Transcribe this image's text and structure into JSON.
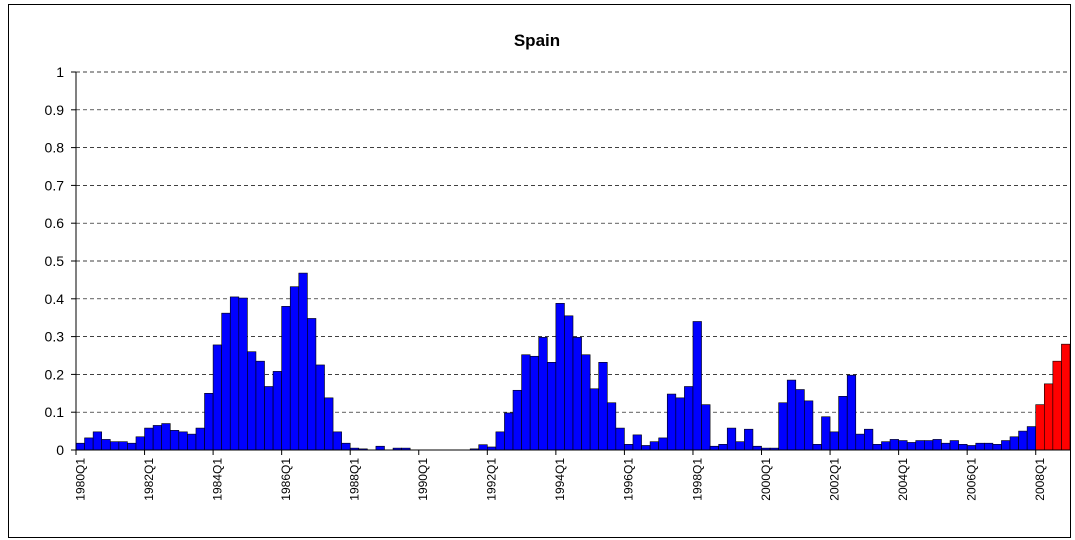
{
  "chart_data": {
    "type": "bar",
    "title": "Spain",
    "categories": [
      "1980Q1",
      null,
      null,
      null,
      null,
      null,
      null,
      null,
      "1982Q1",
      null,
      null,
      null,
      null,
      null,
      null,
      null,
      "1984Q1",
      null,
      null,
      null,
      null,
      null,
      null,
      null,
      "1986Q1",
      null,
      null,
      null,
      null,
      null,
      null,
      null,
      "1988Q1",
      null,
      null,
      null,
      null,
      null,
      null,
      null,
      "1990Q1",
      null,
      null,
      null,
      null,
      null,
      null,
      null,
      "1992Q1",
      null,
      null,
      null,
      null,
      null,
      null,
      null,
      "1994Q1",
      null,
      null,
      null,
      null,
      null,
      null,
      null,
      "1996Q1",
      null,
      null,
      null,
      null,
      null,
      null,
      null,
      "1998Q1",
      null,
      null,
      null,
      null,
      null,
      null,
      null,
      "2000Q1",
      null,
      null,
      null,
      null,
      null,
      null,
      null,
      "2002Q1",
      null,
      null,
      null,
      null,
      null,
      null,
      null,
      "2004Q1",
      null,
      null,
      null,
      null,
      null,
      null,
      null,
      "2006Q1",
      null,
      null,
      null,
      null,
      null,
      null,
      null,
      "2008Q1",
      null,
      null,
      null
    ],
    "series": [
      {
        "color": "#0000ff",
        "values": [
          0.018,
          0.032,
          0.048,
          0.028,
          0.022,
          0.022,
          0.018,
          0.035,
          0.058,
          0.065,
          0.07,
          0.052,
          0.048,
          0.042,
          0.058,
          0.15,
          0.278,
          0.362,
          0.405,
          0.402,
          0.26,
          0.235,
          0.168,
          0.208,
          0.38,
          0.432,
          0.468,
          0.348,
          0.225,
          0.138,
          0.048,
          0.018,
          0.005,
          0.003,
          0,
          0.01,
          0,
          0.005,
          0.005,
          0,
          0,
          0,
          0,
          0,
          0,
          0,
          0.003,
          0.014,
          0.008,
          0.048,
          0.098,
          0.158,
          0.252,
          0.248,
          0.298,
          0.232,
          0.388,
          0.355,
          0.298,
          0.252,
          0.162,
          0.232,
          0.125,
          0.058,
          0.015,
          0.04,
          0.012,
          0.022,
          0.032,
          0.148,
          0.138,
          0.168,
          0.34,
          0.12,
          0.01,
          0.015,
          0.058,
          0.022,
          0.055,
          0.01,
          0.005,
          0.005,
          0.125,
          0.185,
          0.16,
          0.13,
          0.015,
          0.088,
          0.048,
          0.142,
          0.198,
          0.042,
          0.055,
          0.015,
          0.022,
          0.028,
          0.025,
          0.02,
          0.025,
          0.025,
          0.028,
          0.018,
          0.025,
          0.015,
          0.012,
          0.018,
          0.018,
          0.015,
          0.025,
          0.035,
          0.05,
          0.062,
          null,
          null,
          null,
          null
        ]
      },
      {
        "color": "#ff0000",
        "values": [
          null,
          null,
          null,
          null,
          null,
          null,
          null,
          null,
          null,
          null,
          null,
          null,
          null,
          null,
          null,
          null,
          null,
          null,
          null,
          null,
          null,
          null,
          null,
          null,
          null,
          null,
          null,
          null,
          null,
          null,
          null,
          null,
          null,
          null,
          null,
          null,
          null,
          null,
          null,
          null,
          null,
          null,
          null,
          null,
          null,
          null,
          null,
          null,
          null,
          null,
          null,
          null,
          null,
          null,
          null,
          null,
          null,
          null,
          null,
          null,
          null,
          null,
          null,
          null,
          null,
          null,
          null,
          null,
          null,
          null,
          null,
          null,
          null,
          null,
          null,
          null,
          null,
          null,
          null,
          null,
          null,
          null,
          null,
          null,
          null,
          null,
          null,
          null,
          null,
          null,
          null,
          null,
          null,
          null,
          null,
          null,
          null,
          null,
          null,
          null,
          null,
          null,
          null,
          null,
          null,
          null,
          null,
          null,
          null,
          null,
          null,
          null,
          0.12,
          0.175,
          0.235,
          0.28
        ]
      }
    ],
    "ylim": [
      0,
      1
    ],
    "yticks": [
      0,
      0.1,
      0.2,
      0.3,
      0.4,
      0.5,
      0.6,
      0.7,
      0.8,
      0.9,
      1
    ],
    "grid": true
  }
}
